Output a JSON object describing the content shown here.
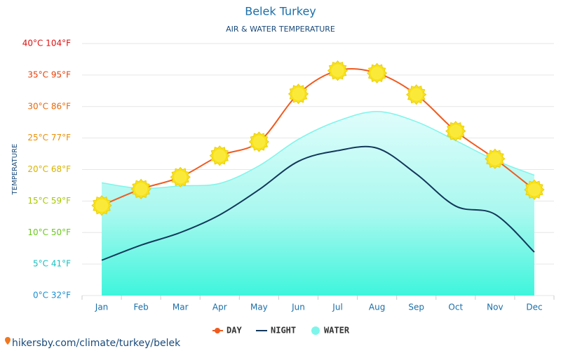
{
  "chart_data": {
    "type": "line",
    "title": "Belek Turkey",
    "subtitle": "AIR & WATER TEMPERATURE",
    "y_label": "TEMPERATURE",
    "source": "hikersby.com/climate/turkey/belek",
    "categories": [
      "Jan",
      "Feb",
      "Mar",
      "Apr",
      "May",
      "Jun",
      "Jul",
      "Aug",
      "Sep",
      "Oct",
      "Nov",
      "Dec"
    ],
    "series": [
      {
        "name": "DAY",
        "color": "#f05a1e",
        "values": [
          14.3,
          16.9,
          18.8,
          22.2,
          24.4,
          32.0,
          35.7,
          35.3,
          31.9,
          26.1,
          21.7,
          16.8
        ]
      },
      {
        "name": "NIGHT",
        "color": "#12385a",
        "values": [
          5.6,
          8.0,
          10.0,
          12.8,
          16.8,
          21.3,
          23.0,
          23.4,
          19.3,
          14.2,
          12.9,
          6.9
        ]
      },
      {
        "name": "WATER",
        "color": "#7ef5ea",
        "values": [
          17.9,
          17.0,
          17.4,
          17.8,
          20.6,
          24.8,
          27.7,
          29.2,
          27.6,
          24.6,
          21.5,
          19.1
        ]
      }
    ],
    "ylim": [
      0,
      40
    ],
    "yticks": [
      {
        "value": 0,
        "label": "0°C 32°F"
      },
      {
        "value": 5,
        "label": "5°C 41°F"
      },
      {
        "value": 10,
        "label": "10°C 50°F"
      },
      {
        "value": 15,
        "label": "15°C 59°F"
      },
      {
        "value": 20,
        "label": "20°C 68°F"
      },
      {
        "value": 25,
        "label": "25°C 77°F"
      },
      {
        "value": 30,
        "label": "30°C 86°F"
      },
      {
        "value": 35,
        "label": "35°C 95°F"
      },
      {
        "value": 40,
        "label": "40°C 104°F"
      }
    ],
    "ytick_colors": [
      "#1a8fd0",
      "#18c0c0",
      "#6cc81e",
      "#a8c800",
      "#d8b400",
      "#e8900a",
      "#e86a0a",
      "#e8400a",
      "#e01010"
    ],
    "grid": true
  }
}
